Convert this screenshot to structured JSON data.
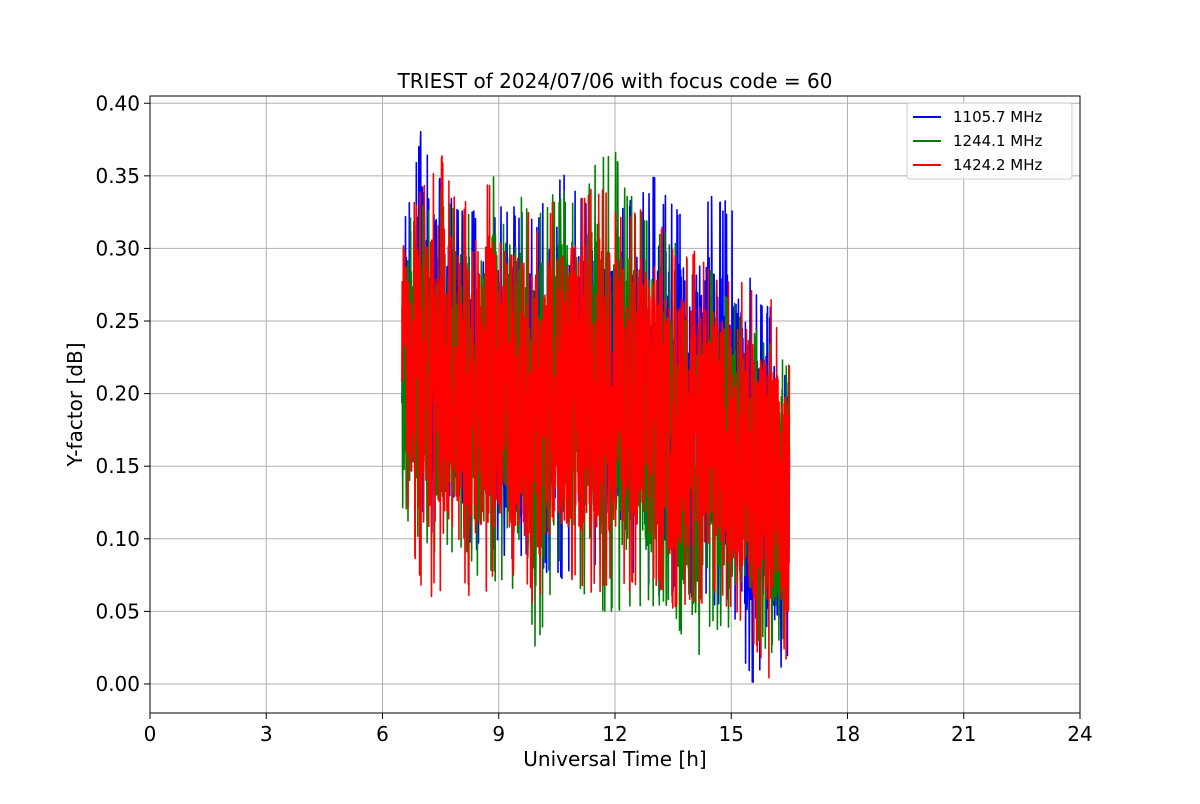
{
  "chart_data": {
    "type": "line",
    "title": "TRIEST of 2024/07/06 with focus code = 60",
    "xlabel": "Universal Time [h]",
    "ylabel": "Y-factor [dB]",
    "xlim": [
      0,
      24
    ],
    "ylim": [
      -0.02,
      0.405
    ],
    "xticks": [
      0,
      3,
      6,
      9,
      12,
      15,
      18,
      21,
      24
    ],
    "xtick_labels": [
      "0",
      "3",
      "6",
      "9",
      "12",
      "15",
      "18",
      "21",
      "24"
    ],
    "yticks": [
      0.0,
      0.05,
      0.1,
      0.15,
      0.2,
      0.25,
      0.3,
      0.35,
      0.4
    ],
    "ytick_labels": [
      "0.00",
      "0.05",
      "0.10",
      "0.15",
      "0.20",
      "0.25",
      "0.30",
      "0.35",
      "0.40"
    ],
    "grid": true,
    "legend_position": "top-right",
    "series": [
      {
        "name": "1105.7 MHz",
        "color": "#0000ff",
        "x": [
          6.5,
          7.0,
          7.5,
          8.0,
          8.5,
          9.0,
          9.5,
          10.0,
          10.5,
          11.0,
          11.5,
          12.0,
          12.5,
          13.0,
          13.5,
          14.0,
          14.5,
          15.0,
          15.5,
          16.0,
          16.5
        ],
        "y_max": [
          0.31,
          0.385,
          0.35,
          0.33,
          0.33,
          0.33,
          0.33,
          0.32,
          0.36,
          0.34,
          0.34,
          0.33,
          0.34,
          0.35,
          0.33,
          0.32,
          0.34,
          0.33,
          0.28,
          0.26,
          0.24
        ],
        "y_min": [
          0.14,
          0.11,
          0.1,
          0.09,
          0.09,
          0.09,
          0.08,
          0.08,
          0.07,
          0.08,
          0.08,
          0.08,
          0.07,
          0.06,
          0.06,
          0.06,
          0.05,
          0.05,
          0.0,
          0.0,
          0.02
        ]
      },
      {
        "name": "1244.1 MHz",
        "color": "#008000",
        "x": [
          6.5,
          7.0,
          7.5,
          8.0,
          8.5,
          9.0,
          9.5,
          10.0,
          10.5,
          11.0,
          11.5,
          12.0,
          12.5,
          13.0,
          13.5,
          14.0,
          14.5,
          15.0,
          15.5,
          16.0,
          16.5
        ],
        "y_max": [
          0.32,
          0.33,
          0.34,
          0.33,
          0.33,
          0.37,
          0.34,
          0.33,
          0.34,
          0.34,
          0.36,
          0.37,
          0.33,
          0.32,
          0.31,
          0.29,
          0.29,
          0.27,
          0.25,
          0.24,
          0.22
        ],
        "y_min": [
          0.12,
          0.09,
          0.09,
          0.09,
          0.07,
          0.07,
          0.06,
          0.02,
          0.08,
          0.07,
          0.05,
          0.05,
          0.05,
          0.05,
          0.05,
          0.0,
          0.04,
          0.03,
          0.03,
          0.02,
          0.03
        ]
      },
      {
        "name": "1424.2 MHz",
        "color": "#ff0000",
        "x": [
          6.5,
          7.0,
          7.5,
          8.0,
          8.5,
          9.0,
          9.5,
          10.0,
          10.5,
          11.0,
          11.5,
          12.0,
          12.5,
          13.0,
          13.5,
          14.0,
          14.5,
          15.0,
          15.5,
          16.0,
          16.5
        ],
        "y_max": [
          0.33,
          0.34,
          0.37,
          0.33,
          0.35,
          0.35,
          0.33,
          0.32,
          0.34,
          0.34,
          0.35,
          0.33,
          0.33,
          0.33,
          0.3,
          0.3,
          0.29,
          0.28,
          0.28,
          0.27,
          0.22
        ],
        "y_min": [
          0.14,
          0.06,
          0.06,
          0.06,
          0.06,
          0.07,
          0.07,
          0.05,
          0.07,
          0.07,
          0.06,
          0.07,
          0.06,
          0.07,
          0.05,
          0.05,
          0.06,
          0.05,
          0.03,
          0.0,
          0.02
        ]
      }
    ]
  }
}
